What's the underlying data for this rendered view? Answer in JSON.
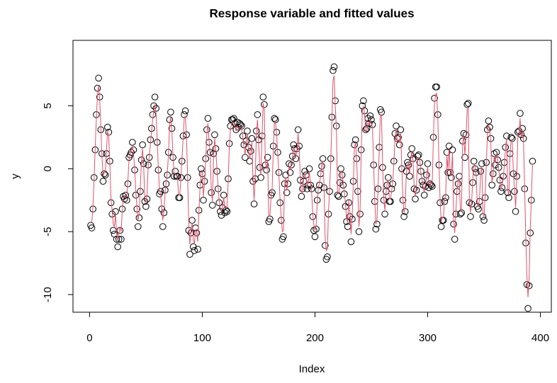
{
  "chart_data": {
    "type": "scatter",
    "title": "Response variable and fitted values",
    "x_label": "Index",
    "y_label": "y",
    "xlim": [
      -14.7,
      409.7
    ],
    "xticks": [
      0,
      100,
      200,
      300,
      400
    ],
    "ylim": [
      -11.4,
      10.2
    ],
    "yticks": [
      -10,
      -5,
      0,
      5
    ],
    "series": [
      {
        "color": "#000000",
        "style": "points",
        "values": [
          -4.5,
          -4.7,
          -3.2,
          -0.7,
          1.5,
          4.3,
          6.4,
          7.2,
          5.7,
          3.1,
          1.2,
          -1.0,
          -0.4,
          -0.5,
          1.2,
          3.3,
          2.9,
          0.6,
          -2.7,
          -3.6,
          -4.9,
          -5.2,
          -3.4,
          -5.6,
          -6.2,
          -5.6,
          -4.9,
          -5.6,
          -3.2,
          -2.2,
          -2.4,
          -2.1,
          -2.5,
          -1.2,
          0.9,
          1.1,
          1.3,
          2.1,
          1.5,
          -0.1,
          -2.1,
          -3.2,
          -4.6,
          -3.9,
          -1.8,
          0.7,
          1.9,
          0.4,
          -2.6,
          -3.0,
          -2.4,
          0.3,
          0.9,
          2.3,
          3.2,
          4.3,
          5.0,
          5.7,
          4.8,
          2.1,
          -0.1,
          -2.0,
          -1.8,
          -3.2,
          -4.6,
          -3.5,
          -1.7,
          -1.2,
          -0.5,
          1.3,
          3.9,
          4.5,
          3.2,
          0.9,
          -0.6,
          -0.2,
          -0.6,
          -0.6,
          -2.3,
          -2.3,
          -0.7,
          0.6,
          2.6,
          4.3,
          4.6,
          2.7,
          -0.7,
          -4.9,
          -6.8,
          -5.1,
          -4.1,
          -6.2,
          -6.5,
          -4.7,
          -5.1,
          -6.4,
          -3.3,
          -1.3,
          0.0,
          -0.4,
          -2.5,
          -1.0,
          0.8,
          3.1,
          4.0,
          2.1,
          1.3,
          -1.9,
          -2.9,
          1.2,
          2.7,
          1.6,
          -0.2,
          -1.6,
          -2.7,
          -3.4,
          -3.7,
          -3.1,
          -2.1,
          -3.5,
          -3.3,
          -3.4,
          -0.8,
          2.0,
          3.4,
          3.9,
          3.9,
          4.0,
          3.6,
          3.1,
          3.7,
          3.3,
          3.6,
          3.5,
          3.4,
          2.6,
          1.9,
          0.9,
          2.2,
          3.0,
          1.7,
          0.6,
          1.4,
          2.4,
          -1.0,
          -2.8,
          -0.8,
          3.0,
          4.3,
          2.3,
          0.1,
          -0.7,
          2.6,
          5.7,
          5.1,
          0.3,
          -0.1,
          0.9,
          -4.2,
          -4.0,
          -2.1,
          -1.9,
          1.8,
          4.0,
          3.9,
          2.9,
          1.3,
          -0.3,
          -2.7,
          -4.1,
          -5.6,
          -5.4,
          -1.2,
          -0.5,
          -1.9,
          -1.2,
          0.4,
          -0.3,
          0.3,
          1.0,
          1.9,
          1.6,
          0.8,
          1.6,
          3.1,
          1.8,
          -0.9,
          -2.2,
          -1.6,
          -1.0,
          -0.2,
          -0.5,
          -1.6,
          -1.3,
          0.0,
          -1.3,
          -1.6,
          -3.8,
          -4.9,
          -5.4,
          -4.8,
          -2.5,
          -1.7,
          -1.3,
          -0.4,
          0.2,
          0.8,
          -1.5,
          -6.1,
          -7.2,
          -7.0,
          -3.6,
          -1.8,
          0.8,
          4.1,
          7.8,
          8.1,
          5.4,
          3.4,
          -2.1,
          -2.2,
          -1.1,
          0.0,
          -0.5,
          -1.3,
          -2.0,
          -3.0,
          -4.2,
          -4.6,
          -2.7,
          -3.8,
          -5.8,
          -4.0,
          -1.0,
          1.9,
          2.3,
          0.8,
          -1.8,
          -5.0,
          -3.6,
          1.5,
          5.0,
          5.4,
          4.6,
          3.1,
          3.2,
          4.0,
          3.6,
          4.2,
          3.9,
          3.5,
          0.3,
          -2.6,
          -4.8,
          -4.4,
          -1.6,
          1.7,
          4.7,
          4.5,
          0.1,
          -2.5,
          -3.6,
          -1.8,
          -1.3,
          -0.7,
          -2.6,
          -2.6,
          -1.6,
          -1.2,
          0.6,
          2.8,
          3.4,
          2.4,
          2.5,
          1.9,
          3.1,
          0.0,
          -2.5,
          -3.8,
          -3.4,
          -0.2,
          0.5,
          0.3,
          -0.6,
          1.1,
          1.6,
          0.8,
          -1.6,
          -2.4,
          -1.7,
          1.0,
          1.1,
          0.5,
          -0.2,
          -1.0,
          -1.3,
          -2.1,
          -1.4,
          -0.5,
          0.4,
          -1.5,
          -1.2,
          -1.3,
          -1.4,
          2.5,
          5.6,
          6.5,
          6.5,
          4.3,
          0.3,
          -2.7,
          -4.6,
          -4.1,
          -4.1,
          -2.6,
          -2.3,
          1.3,
          -0.3,
          1.8,
          -0.3,
          -0.7,
          1.5,
          -4.4,
          -5.6,
          -3.6,
          -1.8,
          -1.2,
          -0.6,
          -3.6,
          -3.5,
          2.2,
          2.8,
          0.9,
          2.7,
          5.1,
          5.2,
          -2.7,
          -3.8,
          -2.8,
          -1.1,
          0.6,
          0.0,
          -0.3,
          -3.0,
          -3.2,
          -2.6,
          -0.2,
          0.4,
          -3.8,
          -4.1,
          -2.3,
          0.5,
          3.1,
          3.8,
          3.3,
          2.4,
          -1.3,
          -0.4,
          1.2,
          0.3,
          1.3,
          0.7,
          0.1,
          -0.9,
          -1.8,
          -1.5,
          -0.6,
          0.5,
          1.7,
          2.6,
          -1.9,
          -2.3,
          1.2,
          2.5,
          2.4,
          -0.4,
          -1.8,
          -3.4,
          -0.6,
          2.9,
          3.0,
          4.4,
          2.7,
          3.2,
          2.4,
          -1.6,
          -5.9,
          -9.2,
          -11.1,
          -9.3,
          -5.1,
          -2.5,
          0.6
        ]
      },
      {
        "color": "#DF536B",
        "style": "line",
        "values": [
          -4.3,
          -4.2,
          -3.0,
          -0.9,
          1.7,
          3.9,
          5.9,
          6.6,
          5.5,
          3.3,
          1.0,
          -0.6,
          -0.3,
          -0.2,
          1.4,
          3.0,
          2.6,
          0.4,
          -2.4,
          -3.3,
          -4.4,
          -4.6,
          -3.6,
          -5.1,
          -5.7,
          -5.2,
          -4.6,
          -5.0,
          -3.4,
          -2.4,
          -2.2,
          -2.3,
          -2.2,
          -1.0,
          0.7,
          1.2,
          1.5,
          1.8,
          1.2,
          0.1,
          -1.8,
          -3.0,
          -4.1,
          -3.5,
          -1.5,
          0.5,
          1.6,
          0.2,
          -2.3,
          -2.7,
          -2.0,
          0.1,
          1.0,
          2.0,
          3.0,
          3.9,
          4.6,
          5.1,
          4.4,
          2.3,
          0.1,
          -1.7,
          -2.0,
          -3.0,
          -4.1,
          -3.3,
          -1.9,
          -1.0,
          -0.3,
          1.1,
          3.5,
          4.1,
          3.0,
          1.1,
          -0.4,
          -0.4,
          -0.5,
          -0.8,
          -2.0,
          -2.1,
          -0.9,
          0.8,
          2.4,
          4.0,
          4.2,
          2.5,
          -0.5,
          -4.4,
          -6.0,
          -5.0,
          -4.3,
          -5.6,
          -6.0,
          -4.9,
          -5.0,
          -5.8,
          -3.5,
          -1.5,
          -0.2,
          -0.2,
          -2.2,
          -1.2,
          0.6,
          2.8,
          3.6,
          2.3,
          1.1,
          -1.6,
          -2.6,
          0.9,
          2.4,
          1.5,
          0.0,
          -1.4,
          -2.5,
          -3.2,
          -3.4,
          -3.0,
          -2.3,
          -3.1,
          -3.1,
          -3.0,
          -1.0,
          1.8,
          3.1,
          3.6,
          3.7,
          3.7,
          3.4,
          3.0,
          3.4,
          3.2,
          3.3,
          3.3,
          3.1,
          2.5,
          1.7,
          1.1,
          2.0,
          2.8,
          1.5,
          0.8,
          1.2,
          2.1,
          -0.8,
          -2.5,
          -0.6,
          2.7,
          3.9,
          2.1,
          0.3,
          -0.5,
          2.4,
          5.2,
          4.7,
          0.5,
          0.0,
          0.7,
          -3.8,
          -3.7,
          -2.3,
          -1.6,
          1.5,
          3.7,
          3.6,
          2.7,
          1.1,
          -0.5,
          -2.4,
          -3.8,
          -5.0,
          -4.9,
          -1.4,
          -0.7,
          -1.7,
          -1.0,
          0.2,
          -0.1,
          0.5,
          0.8,
          1.7,
          1.4,
          1.0,
          1.4,
          2.8,
          1.6,
          -0.7,
          -2.0,
          -1.8,
          -0.8,
          -0.4,
          -0.7,
          -1.4,
          -1.1,
          -0.2,
          -1.1,
          -1.8,
          -3.5,
          -4.5,
          -4.9,
          -4.5,
          -2.7,
          -1.5,
          -1.1,
          -0.6,
          0.4,
          0.6,
          -1.3,
          -5.5,
          -6.5,
          -6.4,
          -3.4,
          -1.6,
          0.6,
          3.8,
          7.0,
          7.4,
          5.0,
          3.2,
          -1.9,
          -2.0,
          -1.3,
          -0.2,
          -0.3,
          -1.1,
          -1.8,
          -2.8,
          -3.9,
          -4.3,
          -2.5,
          -3.5,
          -5.2,
          -3.8,
          -1.2,
          1.7,
          2.1,
          0.6,
          -1.6,
          -4.6,
          -3.4,
          1.3,
          4.6,
          5.0,
          4.3,
          3.0,
          3.0,
          3.7,
          3.4,
          3.9,
          3.6,
          3.3,
          0.5,
          -2.4,
          -4.4,
          -4.1,
          -1.4,
          1.5,
          4.3,
          4.2,
          0.3,
          -2.3,
          -3.3,
          -2.0,
          -1.1,
          -0.9,
          -2.4,
          -2.4,
          -1.8,
          -1.0,
          0.4,
          2.5,
          3.1,
          2.2,
          2.3,
          2.1,
          2.8,
          0.2,
          -2.3,
          -3.5,
          -3.1,
          -0.4,
          0.3,
          0.5,
          -0.4,
          0.9,
          1.4,
          0.6,
          -1.4,
          -2.2,
          -1.5,
          0.8,
          0.9,
          0.7,
          -0.4,
          -0.8,
          -1.5,
          -1.9,
          -1.2,
          -0.7,
          0.2,
          -1.3,
          -1.4,
          -1.1,
          -1.2,
          2.2,
          5.1,
          5.9,
          6.0,
          4.0,
          0.5,
          -2.5,
          -4.2,
          -3.9,
          -3.8,
          -2.4,
          -2.1,
          1.1,
          -0.1,
          1.6,
          -0.5,
          -0.5,
          1.3,
          -4.0,
          -5.1,
          -3.4,
          -1.6,
          -1.0,
          -0.8,
          -3.3,
          -3.2,
          2.0,
          2.6,
          1.1,
          2.5,
          4.7,
          4.8,
          -2.5,
          -3.5,
          -2.6,
          -0.9,
          0.4,
          0.2,
          -0.5,
          -2.8,
          -3.0,
          -2.4,
          -0.4,
          0.2,
          -3.5,
          -3.8,
          -2.1,
          0.3,
          2.8,
          3.5,
          3.1,
          2.2,
          -1.1,
          -0.6,
          1.0,
          0.5,
          1.1,
          0.9,
          -0.1,
          -0.7,
          -1.6,
          -1.3,
          -0.8,
          0.3,
          1.5,
          2.4,
          -1.7,
          -2.1,
          1.0,
          2.3,
          2.2,
          -0.2,
          -1.6,
          -3.1,
          -0.8,
          2.6,
          2.8,
          4.0,
          2.5,
          3.0,
          2.2,
          -1.4,
          -5.4,
          -8.4,
          -10.2,
          -8.6,
          -4.8,
          -2.3,
          0.4
        ]
      }
    ]
  }
}
